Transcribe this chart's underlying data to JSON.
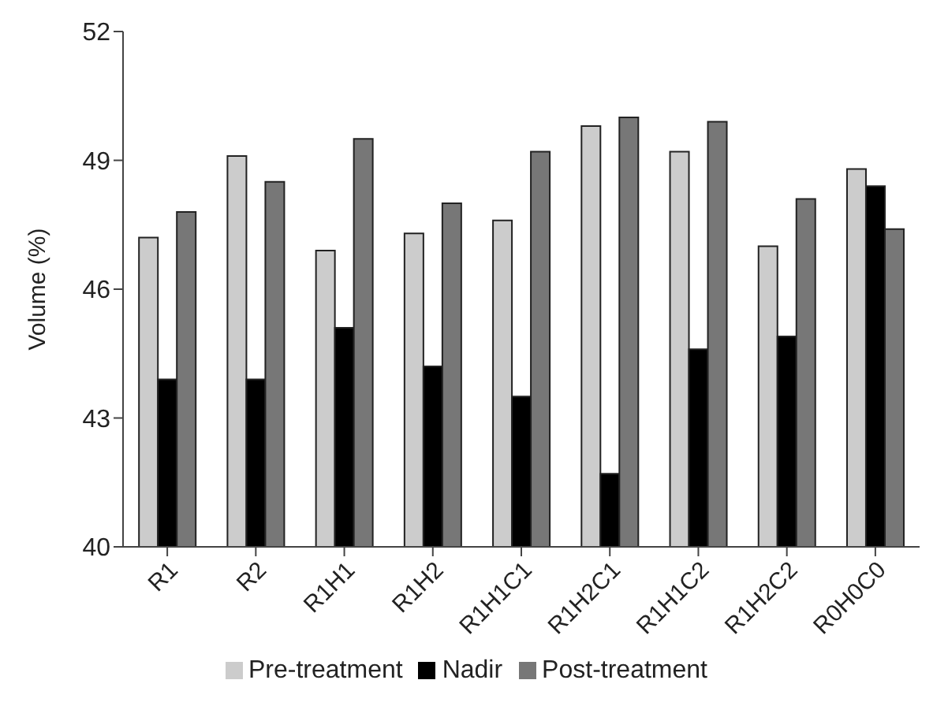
{
  "chart_data": {
    "type": "bar",
    "ylabel": "Volume (%)",
    "categories": [
      "R1",
      "R2",
      "R1H1",
      "R1H2",
      "R1H1C1",
      "R1H2C1",
      "R1H1C2",
      "R1H2C2",
      "R0H0C0"
    ],
    "series": [
      {
        "name": "Pre-treatment",
        "color": "#cccccc",
        "values": [
          47.2,
          49.1,
          46.9,
          47.3,
          47.6,
          49.8,
          49.2,
          47.0,
          48.8
        ]
      },
      {
        "name": "Nadir",
        "color": "#000000",
        "values": [
          43.9,
          43.9,
          45.1,
          44.2,
          43.5,
          41.7,
          44.6,
          44.9,
          48.4
        ]
      },
      {
        "name": "Post-treatment",
        "color": "#777777",
        "values": [
          47.8,
          48.5,
          49.5,
          48.0,
          49.2,
          50.0,
          49.9,
          48.1,
          47.4
        ]
      }
    ],
    "ylim": [
      40,
      52
    ],
    "yticks": [
      40,
      43,
      46,
      49,
      52
    ],
    "grid": false,
    "legend": "bottom"
  }
}
